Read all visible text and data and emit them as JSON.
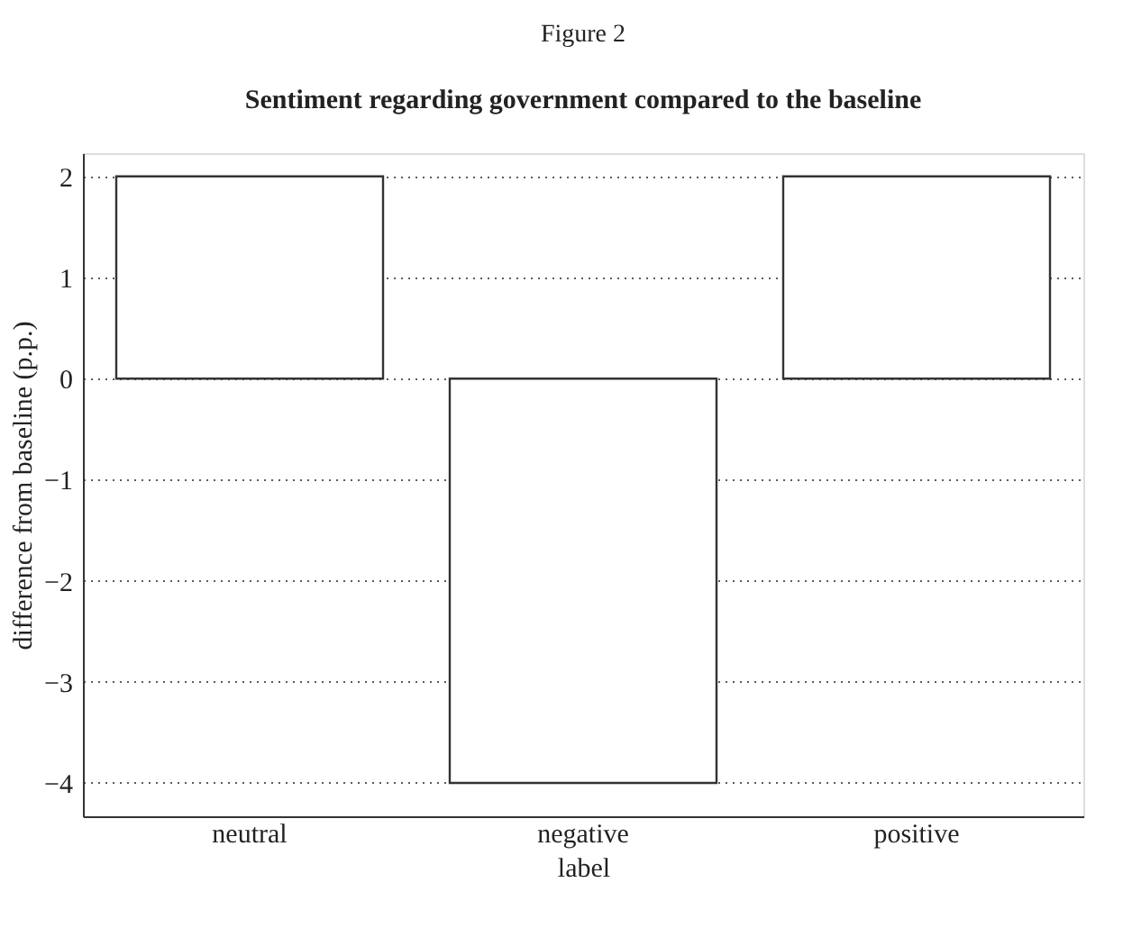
{
  "chart_data": {
    "type": "bar",
    "title": "Sentiment regarding government compared to the baseline",
    "annotations": [
      "Figure 2"
    ],
    "xlabel": "label",
    "ylabel": "difference from baseline (p.p.)",
    "categories": [
      "neutral",
      "negative",
      "positive"
    ],
    "values": [
      2,
      -4,
      2
    ],
    "colors": [
      "#ffffff",
      "#ffffff",
      "#ffffff"
    ],
    "ylim": [
      -4.33,
      2.23
    ],
    "yticks": [
      -4,
      -3,
      -2,
      -1,
      0,
      1,
      2
    ],
    "grid": "y"
  }
}
